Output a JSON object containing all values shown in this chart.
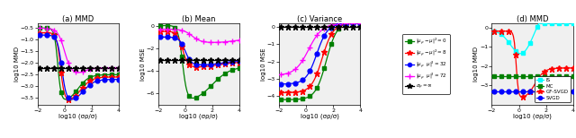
{
  "subplot_titles": [
    "(a) MMD",
    "(b) Mean",
    "(c) Variance",
    "(d) MMD"
  ],
  "xlabel": "log10 (σρ/σ)",
  "ylabels": [
    "log10 MMD",
    "log10 MSE",
    "log10 MSE",
    "log10 MMD"
  ],
  "colors_abc": [
    "green",
    "red",
    "blue",
    "magenta",
    "black"
  ],
  "colors_d": [
    "cyan",
    "green",
    "red",
    "blue"
  ],
  "bg_color": "#f0f0f0"
}
